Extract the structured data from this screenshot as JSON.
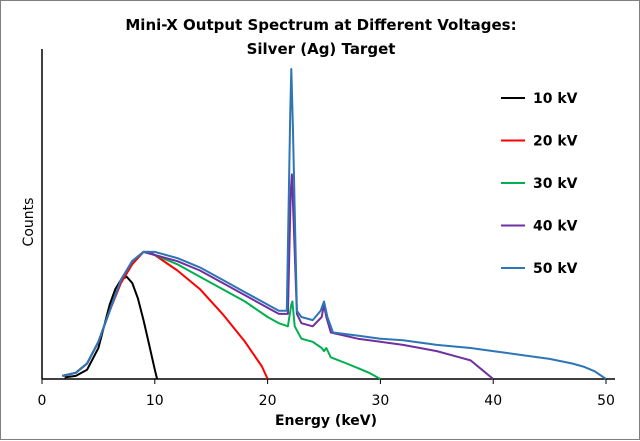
{
  "chart_data": {
    "type": "line",
    "title_line1": "Mini-X Output Spectrum at Different Voltages:",
    "title_line2": "Silver (Ag) Target",
    "xlabel": "Energy (keV)",
    "ylabel": "Counts",
    "xlim": [
      0,
      52
    ],
    "ylim": [
      0,
      100
    ],
    "xticks": [
      "0",
      "10",
      "20",
      "30",
      "40",
      "50"
    ],
    "y_tick_labels_shown": false,
    "grid": false,
    "legend_position": "right",
    "series": [
      {
        "name": "10 kV",
        "color": "#000000",
        "points": [
          [
            2,
            0.5
          ],
          [
            3,
            1
          ],
          [
            4,
            3
          ],
          [
            5,
            10
          ],
          [
            6,
            24
          ],
          [
            6.5,
            29
          ],
          [
            7,
            32
          ],
          [
            7.5,
            33
          ],
          [
            8,
            31
          ],
          [
            8.5,
            26
          ],
          [
            9,
            19
          ],
          [
            9.5,
            11
          ],
          [
            10,
            3
          ],
          [
            10.2,
            0
          ]
        ]
      },
      {
        "name": "20 kV",
        "color": "#ff0000",
        "points": [
          [
            1.8,
            1
          ],
          [
            3,
            2
          ],
          [
            4,
            5
          ],
          [
            5,
            12
          ],
          [
            6,
            22
          ],
          [
            7,
            31
          ],
          [
            8,
            37
          ],
          [
            9,
            41
          ],
          [
            9.5,
            41
          ],
          [
            10,
            40
          ],
          [
            12,
            35
          ],
          [
            14,
            29
          ],
          [
            16,
            21
          ],
          [
            18,
            12
          ],
          [
            19.5,
            4
          ],
          [
            20,
            0
          ]
        ]
      },
      {
        "name": "30 kV",
        "color": "#00b050",
        "points": [
          [
            1.8,
            1
          ],
          [
            3,
            2
          ],
          [
            4,
            5
          ],
          [
            5,
            12
          ],
          [
            6,
            22
          ],
          [
            7,
            32
          ],
          [
            8,
            38
          ],
          [
            9,
            41
          ],
          [
            10,
            40
          ],
          [
            12,
            37
          ],
          [
            14,
            33
          ],
          [
            16,
            29
          ],
          [
            18,
            25
          ],
          [
            20,
            20
          ],
          [
            21,
            18
          ],
          [
            21.8,
            17
          ],
          [
            22.1,
            24
          ],
          [
            22.2,
            25
          ],
          [
            22.4,
            17
          ],
          [
            23,
            13
          ],
          [
            24,
            12
          ],
          [
            24.8,
            10
          ],
          [
            25,
            9
          ],
          [
            25.2,
            10
          ],
          [
            25.6,
            7
          ],
          [
            27,
            5
          ],
          [
            28,
            3.5
          ],
          [
            29,
            2
          ],
          [
            30,
            0
          ]
        ]
      },
      {
        "name": "40 kV",
        "color": "#7030a0",
        "points": [
          [
            1.8,
            1
          ],
          [
            3,
            2
          ],
          [
            4,
            5
          ],
          [
            5,
            12
          ],
          [
            6,
            22
          ],
          [
            7,
            32
          ],
          [
            8,
            38
          ],
          [
            9,
            41
          ],
          [
            10,
            40
          ],
          [
            12,
            38
          ],
          [
            14,
            35
          ],
          [
            16,
            31
          ],
          [
            18,
            27
          ],
          [
            20,
            23
          ],
          [
            21,
            21
          ],
          [
            21.8,
            21
          ],
          [
            22.05,
            60
          ],
          [
            22.15,
            66
          ],
          [
            22.3,
            52
          ],
          [
            22.6,
            21
          ],
          [
            23,
            18
          ],
          [
            24,
            17
          ],
          [
            24.8,
            20
          ],
          [
            25,
            24
          ],
          [
            25.2,
            20
          ],
          [
            25.6,
            15
          ],
          [
            28,
            13
          ],
          [
            30,
            12
          ],
          [
            32,
            11
          ],
          [
            35,
            9
          ],
          [
            37,
            7
          ],
          [
            38,
            6
          ],
          [
            39,
            3
          ],
          [
            40,
            0
          ]
        ]
      },
      {
        "name": "50 kV",
        "color": "#2e75b6",
        "points": [
          [
            1.8,
            1
          ],
          [
            3,
            2
          ],
          [
            4,
            5
          ],
          [
            5,
            12
          ],
          [
            6,
            22
          ],
          [
            7,
            32
          ],
          [
            8,
            38
          ],
          [
            9,
            41
          ],
          [
            10,
            41
          ],
          [
            12,
            39
          ],
          [
            14,
            36
          ],
          [
            16,
            32
          ],
          [
            18,
            28
          ],
          [
            20,
            24
          ],
          [
            21,
            22
          ],
          [
            21.7,
            22
          ],
          [
            22.0,
            85
          ],
          [
            22.1,
            100
          ],
          [
            22.25,
            80
          ],
          [
            22.6,
            22
          ],
          [
            23,
            20
          ],
          [
            24,
            19
          ],
          [
            24.7,
            22
          ],
          [
            25.0,
            25
          ],
          [
            25.3,
            20
          ],
          [
            25.8,
            15
          ],
          [
            28,
            14
          ],
          [
            30,
            13
          ],
          [
            32,
            12.5
          ],
          [
            35,
            11
          ],
          [
            38,
            10
          ],
          [
            40,
            9
          ],
          [
            42,
            8
          ],
          [
            45,
            6.5
          ],
          [
            47,
            5
          ],
          [
            48,
            4
          ],
          [
            49,
            2.5
          ],
          [
            50,
            0
          ]
        ]
      }
    ]
  }
}
